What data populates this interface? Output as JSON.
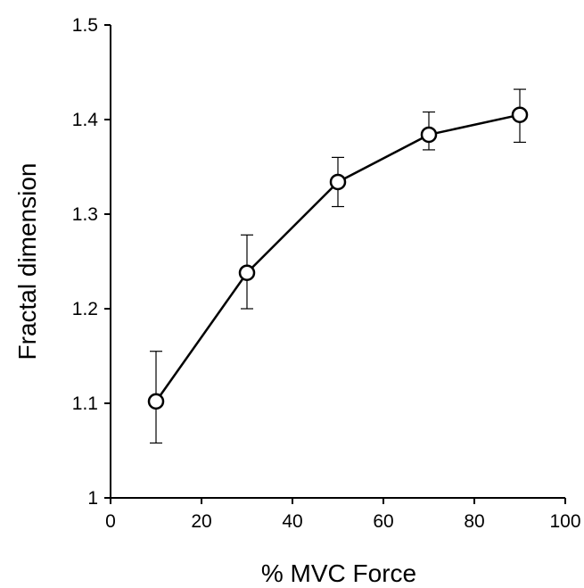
{
  "chart_data": {
    "type": "line",
    "title": "",
    "xlabel": "% MVC Force",
    "ylabel": "Fractal dimension",
    "xlim": [
      0,
      100
    ],
    "ylim": [
      1.0,
      1.5
    ],
    "x_ticks": [
      0,
      20,
      40,
      60,
      80,
      100
    ],
    "y_ticks": [
      1,
      1.1,
      1.2,
      1.3,
      1.4,
      1.5
    ],
    "x_tick_labels": [
      "0",
      "20",
      "40",
      "60",
      "80",
      "100"
    ],
    "y_tick_labels": [
      "1",
      "1.1",
      "1.2",
      "1.3",
      "1.4",
      "1.5"
    ],
    "grid": false,
    "legend": "none",
    "marker": "open-circle",
    "colors": {
      "line": "#000000",
      "marker_fill": "#ffffff"
    },
    "series": [
      {
        "x": [
          10,
          30,
          50,
          70,
          90
        ],
        "y": [
          1.102,
          1.238,
          1.334,
          1.384,
          1.405
        ],
        "error_upper": [
          1.155,
          1.278,
          1.36,
          1.408,
          1.432
        ],
        "error_lower": [
          1.058,
          1.2,
          1.308,
          1.368,
          1.376
        ]
      }
    ]
  }
}
